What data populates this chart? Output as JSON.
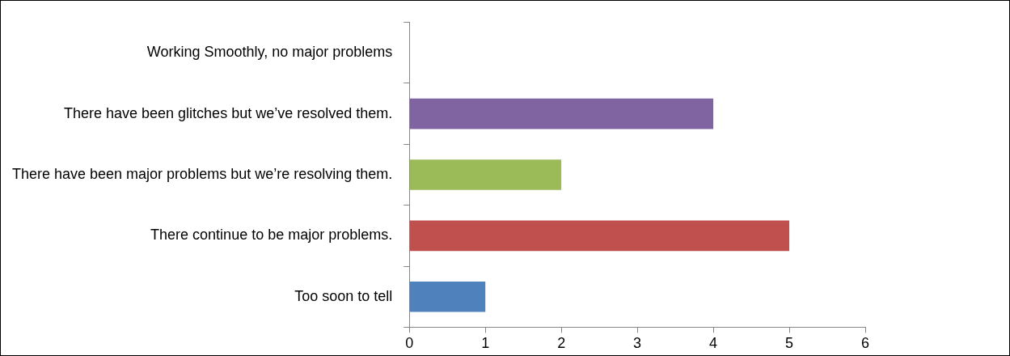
{
  "chart_data": {
    "type": "bar",
    "orientation": "horizontal",
    "categories": [
      "Working Smoothly, no major problems",
      "There have been glitches but we’ve resolved them.",
      "There have been major problems but we’re resolving them.",
      "There continue to be major problems.",
      "Too soon to tell"
    ],
    "values": [
      0,
      4,
      2,
      5,
      1
    ],
    "colors": [
      "#4f81bd",
      "#8064a2",
      "#9bbb59",
      "#c0504d",
      "#4f81bd"
    ],
    "xlim": [
      0,
      6
    ],
    "xticks": [
      0,
      1,
      2,
      3,
      4,
      5,
      6
    ],
    "legend": false,
    "grid": false
  }
}
